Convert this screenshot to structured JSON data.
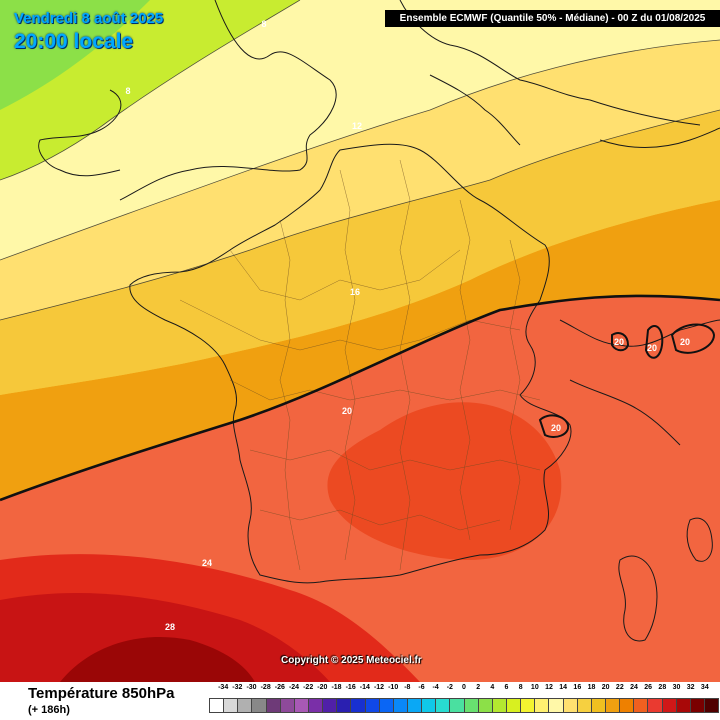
{
  "header": {
    "date_line": "Vendredi 8 août 2025",
    "time_line": "20:00 locale",
    "model_info": "Ensemble ECMWF  (Quantile 50% - Médiane) - 00 Z du 01/08/2025"
  },
  "map": {
    "region": "France and Western Europe",
    "variable_values_unit": "°C",
    "isotherm_labels": [
      {
        "value": "8",
        "color": "#ffffff"
      },
      {
        "value": "8",
        "color": "#ffffff"
      },
      {
        "value": "12",
        "color": "#ffffff"
      },
      {
        "value": "16",
        "color": "#ffffff"
      },
      {
        "value": "20",
        "color": "#ffffff"
      },
      {
        "value": "20",
        "color": "#ffffff"
      },
      {
        "value": "20",
        "color": "#ffffff"
      },
      {
        "value": "20",
        "color": "#ffffff"
      },
      {
        "value": "20",
        "color": "#ffffff"
      },
      {
        "value": "24",
        "color": "#ffffff"
      },
      {
        "value": "28",
        "color": "#ffffff"
      }
    ],
    "highlighted_isotherm": "20"
  },
  "copyright": "Copyright © 2025 Meteociel.fr",
  "footer": {
    "variable_title": "Température 850hPa",
    "lead_time": "(+ 186h)"
  },
  "legend": {
    "ticks": [
      "-34",
      "-32",
      "-30",
      "-28",
      "-26",
      "-24",
      "-22",
      "-20",
      "-18",
      "-16",
      "-14",
      "-12",
      "-10",
      "-8",
      "-6",
      "-4",
      "-2",
      "0",
      "2",
      "4",
      "6",
      "8",
      "10",
      "12",
      "14",
      "16",
      "18",
      "20",
      "22",
      "24",
      "26",
      "28",
      "30",
      "32",
      "34"
    ],
    "colors": [
      "#ffffff",
      "#d8d8d8",
      "#b0b0b0",
      "#888888",
      "#6e3a78",
      "#8e4a9a",
      "#a859b5",
      "#7a2fa8",
      "#5020a8",
      "#2a1fb0",
      "#1830d0",
      "#1048e8",
      "#0a66f5",
      "#0a88f8",
      "#0aa8f5",
      "#10c8e8",
      "#28dcd0",
      "#4ae0a0",
      "#68e070",
      "#8ce048",
      "#b4e830",
      "#d8f020",
      "#f4f430",
      "#fff070",
      "#fff8a8",
      "#ffe070",
      "#f6d040",
      "#f0c020",
      "#f0a010",
      "#ee8000",
      "#f06020",
      "#ea3a30",
      "#d01818",
      "#a80808",
      "#7a0000",
      "#500000"
    ]
  }
}
